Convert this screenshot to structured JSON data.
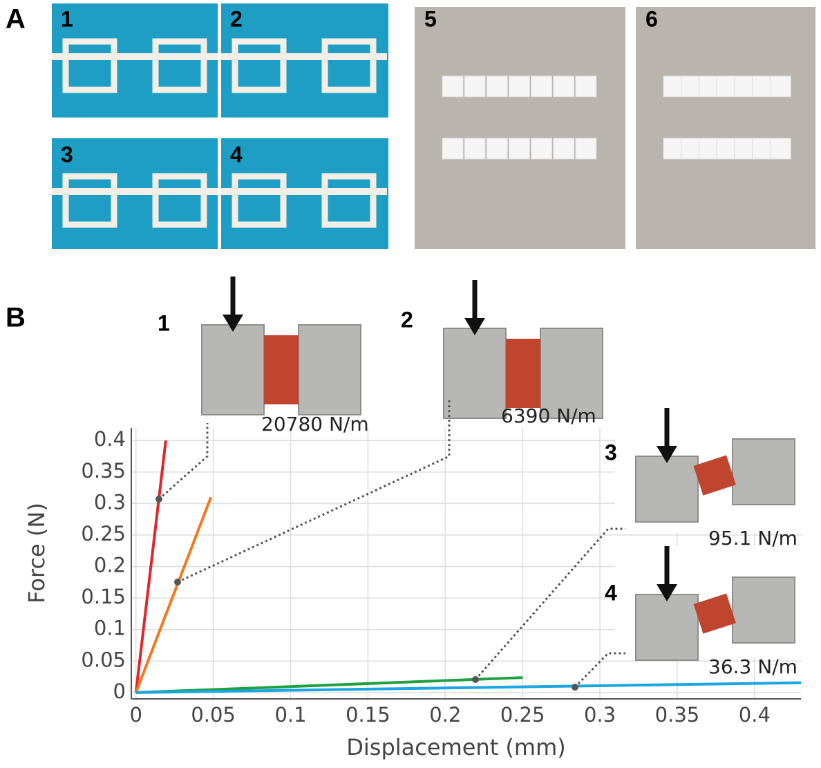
{
  "panels": {
    "a": {
      "label": "A",
      "photos": [
        "1",
        "2",
        "3",
        "4",
        "5",
        "6"
      ]
    },
    "b": {
      "label": "B"
    }
  },
  "chart_data": {
    "type": "line",
    "xlabel": "Displacement (mm)",
    "ylabel": "Force (N)",
    "xlim": [
      -0.003,
      0.43
    ],
    "ylim": [
      -0.01,
      0.42
    ],
    "xticks": [
      0,
      0.05,
      0.1,
      0.15,
      0.2,
      0.25,
      0.3,
      0.35,
      0.4
    ],
    "yticks": [
      0,
      0.05,
      0.1,
      0.15,
      0.2,
      0.25,
      0.3,
      0.35,
      0.4
    ],
    "grid": true,
    "series": [
      {
        "name": "1",
        "label": "20780 N/m",
        "color": "#e0262a",
        "x": [
          0,
          0.0193
        ],
        "values": [
          0,
          0.4
        ]
      },
      {
        "name": "2",
        "label": "6390 N/m",
        "color": "#ef7a22",
        "x": [
          0,
          0.0485
        ],
        "values": [
          0,
          0.31
        ]
      },
      {
        "name": "3",
        "label": "95.1 N/m",
        "color": "#1fa043",
        "x": [
          0,
          0.25
        ],
        "values": [
          0,
          0.0238
        ]
      },
      {
        "name": "4",
        "label": "36.3 N/m",
        "color": "#1aa6e0",
        "x": [
          0,
          0.43
        ],
        "values": [
          0,
          0.0156
        ]
      }
    ]
  }
}
